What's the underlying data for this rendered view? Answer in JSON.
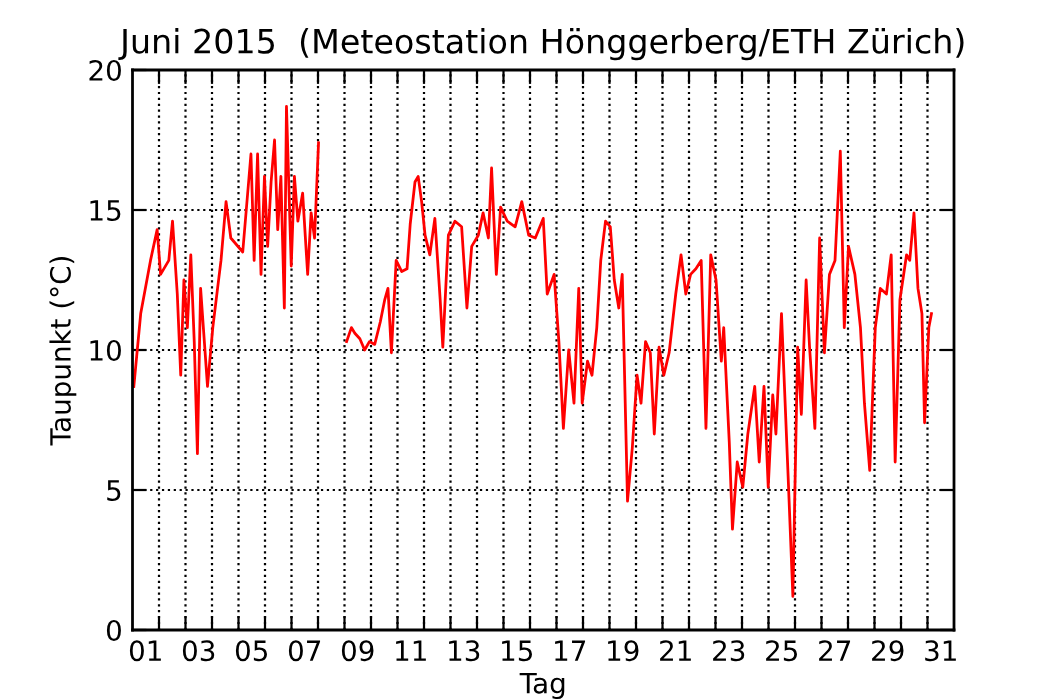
{
  "chart_data": {
    "type": "line",
    "title": "Juni 2015  (Meteostation Hönggerberg/ETH Zürich)",
    "xlabel": "Tag",
    "ylabel": "Taupunkt (°C)",
    "xlim": [
      1,
      32
    ],
    "ylim": [
      0,
      20
    ],
    "yticks": [
      0,
      5,
      10,
      15,
      20
    ],
    "xticks": [
      {
        "value": 1.5,
        "label": "01"
      },
      {
        "value": 3.5,
        "label": "03"
      },
      {
        "value": 5.5,
        "label": "05"
      },
      {
        "value": 7.5,
        "label": "07"
      },
      {
        "value": 9.5,
        "label": "09"
      },
      {
        "value": 11.5,
        "label": "11"
      },
      {
        "value": 13.5,
        "label": "13"
      },
      {
        "value": 15.5,
        "label": "15"
      },
      {
        "value": 17.5,
        "label": "17"
      },
      {
        "value": 19.5,
        "label": "19"
      },
      {
        "value": 21.5,
        "label": "21"
      },
      {
        "value": 23.5,
        "label": "23"
      },
      {
        "value": 25.5,
        "label": "25"
      },
      {
        "value": 27.5,
        "label": "27"
      },
      {
        "value": 29.5,
        "label": "29"
      },
      {
        "value": 31.5,
        "label": "31"
      },
      {
        "value": 2,
        "label": null
      },
      {
        "value": 3,
        "label": null
      },
      {
        "value": 4,
        "label": null
      },
      {
        "value": 5,
        "label": null
      },
      {
        "value": 6,
        "label": null
      },
      {
        "value": 7,
        "label": null
      },
      {
        "value": 8,
        "label": null
      },
      {
        "value": 9,
        "label": null
      },
      {
        "value": 10,
        "label": null
      },
      {
        "value": 11,
        "label": null
      },
      {
        "value": 12,
        "label": null
      },
      {
        "value": 13,
        "label": null
      },
      {
        "value": 14,
        "label": null
      },
      {
        "value": 15,
        "label": null
      },
      {
        "value": 16,
        "label": null
      },
      {
        "value": 17,
        "label": null
      },
      {
        "value": 18,
        "label": null
      },
      {
        "value": 19,
        "label": null
      },
      {
        "value": 20,
        "label": null
      },
      {
        "value": 21,
        "label": null
      },
      {
        "value": 22,
        "label": null
      },
      {
        "value": 23,
        "label": null
      },
      {
        "value": 24,
        "label": null
      },
      {
        "value": 25,
        "label": null
      },
      {
        "value": 26,
        "label": null
      },
      {
        "value": 27,
        "label": null
      },
      {
        "value": 28,
        "label": null
      },
      {
        "value": 29,
        "label": null
      },
      {
        "value": 30,
        "label": null
      },
      {
        "value": 31,
        "label": null
      }
    ],
    "grid": true,
    "line_style": "solid",
    "marker": "none",
    "series": [
      {
        "color": "#ff0000",
        "x": [
          1.05,
          1.31,
          1.68,
          1.93,
          2.06,
          2.37,
          2.51,
          2.69,
          2.82,
          2.94,
          3.07,
          3.2,
          3.33,
          3.45,
          3.57,
          3.83,
          4.03,
          4.21,
          4.34,
          4.53,
          4.71,
          5.16,
          5.47,
          5.59,
          5.72,
          5.85,
          5.98,
          6.1,
          6.23,
          6.36,
          6.48,
          6.6,
          6.73,
          6.81,
          6.99,
          7.11,
          7.24,
          7.42,
          7.61,
          7.74,
          7.87,
          8.02,
          8.5,
          9.08,
          9.26,
          9.39,
          9.58,
          9.76,
          9.94,
          10.14,
          10.35,
          10.52,
          10.64,
          10.77,
          10.95,
          11.16,
          11.36,
          11.48,
          11.66,
          11.78,
          11.91,
          12.04,
          12.22,
          12.41,
          12.61,
          12.71,
          12.92,
          13.17,
          13.42,
          13.62,
          13.8,
          14.05,
          14.23,
          14.43,
          14.55,
          14.73,
          14.89,
          15.14,
          15.44,
          15.69,
          15.95,
          16.2,
          16.5,
          16.65,
          16.91,
          17.09,
          17.26,
          17.46,
          17.66,
          17.84,
          17.97,
          18.17,
          18.34,
          18.52,
          18.67,
          18.85,
          19.03,
          19.18,
          19.35,
          19.48,
          19.68,
          19.86,
          20.04,
          20.19,
          20.36,
          20.54,
          20.69,
          20.87,
          21.05,
          21.25,
          21.5,
          21.7,
          21.88,
          22.06,
          22.26,
          22.46,
          22.64,
          22.82,
          23.02,
          23.22,
          23.31,
          23.52,
          23.64,
          23.82,
          24.03,
          24.22,
          24.48,
          24.65,
          24.83,
          24.99,
          25.16,
          25.28,
          25.49,
          25.74,
          25.92,
          26.1,
          26.24,
          26.42,
          26.55,
          26.75,
          26.93,
          27.11,
          27.3,
          27.51,
          27.71,
          27.86,
          28.02,
          28.26,
          28.47,
          28.62,
          28.82,
          29.03,
          29.22,
          29.45,
          29.63,
          29.78,
          29.96,
          30.21,
          30.33,
          30.49,
          30.64,
          30.79,
          30.89,
          31.05,
          31.15
        ],
        "values": [
          8.7,
          11.3,
          13.2,
          14.3,
          12.7,
          13.2,
          14.6,
          12.0,
          9.1,
          12.5,
          10.8,
          13.4,
          10.3,
          6.3,
          12.2,
          8.7,
          10.8,
          12.2,
          13.2,
          15.3,
          14.0,
          13.5,
          17.0,
          13.2,
          17.0,
          12.7,
          16.2,
          13.7,
          16.0,
          17.5,
          14.3,
          16.2,
          11.5,
          18.7,
          13.0,
          16.2,
          14.6,
          15.6,
          12.7,
          14.9,
          14.0,
          17.4,
          null,
          10.3,
          10.8,
          10.6,
          10.4,
          10.0,
          10.3,
          10.2,
          11.0,
          11.8,
          12.2,
          9.9,
          13.2,
          12.8,
          12.9,
          14.5,
          16.0,
          16.2,
          15.3,
          14.1,
          13.4,
          14.7,
          11.8,
          10.1,
          14.1,
          14.6,
          14.4,
          11.5,
          13.7,
          14.1,
          14.9,
          14.0,
          16.5,
          12.7,
          15.1,
          14.6,
          14.4,
          15.3,
          14.1,
          14.0,
          14.7,
          12.0,
          12.7,
          10.3,
          7.2,
          10.0,
          8.1,
          12.2,
          8.1,
          9.6,
          9.1,
          10.8,
          13.2,
          14.6,
          14.4,
          12.5,
          11.5,
          12.7,
          4.6,
          6.5,
          9.1,
          8.1,
          10.3,
          9.9,
          7.0,
          10.1,
          9.1,
          9.9,
          12.0,
          13.4,
          12.0,
          12.7,
          12.9,
          13.2,
          7.2,
          13.4,
          12.5,
          9.6,
          10.8,
          6.7,
          3.6,
          6.0,
          5.1,
          7.0,
          8.7,
          6.0,
          8.7,
          5.1,
          8.4,
          7.0,
          11.3,
          5.5,
          1.2,
          10.1,
          7.7,
          12.5,
          10.1,
          7.2,
          14.0,
          9.9,
          12.7,
          13.2,
          17.1,
          10.8,
          13.7,
          12.7,
          10.8,
          8.1,
          5.7,
          10.8,
          12.2,
          12.0,
          13.4,
          6.0,
          11.8,
          13.4,
          13.2,
          14.9,
          12.2,
          11.3,
          7.4,
          10.8,
          11.3
        ]
      }
    ]
  }
}
